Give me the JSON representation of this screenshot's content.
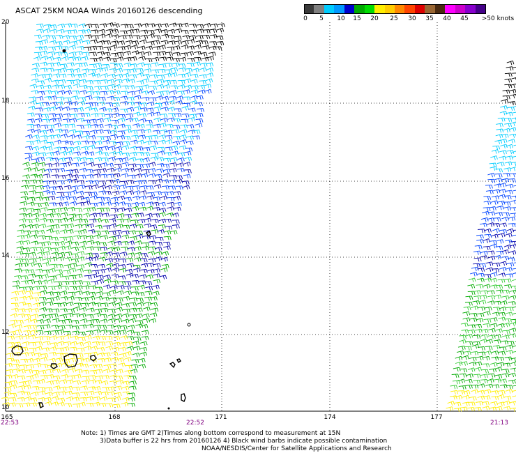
{
  "title": "ASCAT 25KM NOAA Winds 20160126 descending",
  "legend": {
    "colors": [
      "#3a3a3a",
      "#808080",
      "#00ccff",
      "#0099ff",
      "#0000cc",
      "#00aa00",
      "#00dd00",
      "#ffee00",
      "#ffcc00",
      "#ff8800",
      "#ff4400",
      "#dd0000",
      "#996633",
      "#4a2a10",
      "#ff00ff",
      "#cc00cc",
      "#8800cc",
      "#440088"
    ],
    "labels": [
      "0",
      "5",
      "10",
      "15",
      "20",
      "25",
      "30",
      "35",
      "40",
      "45",
      ">50 knots"
    ]
  },
  "axes": {
    "lat_labels": [
      "20",
      "18",
      "16",
      "14",
      "12",
      "10"
    ],
    "lon_labels": [
      "165",
      "168",
      "171",
      "174",
      "177"
    ],
    "time_labels": [
      "22:53",
      "22:52",
      "21:13"
    ]
  },
  "notes": [
    "Note: 1) Times are GMT 2)Times along bottom correspond to measurement at 15N",
    "3)Data buffer is 22 hrs from 20160126 4) Black wind barbs indicate possible contamination",
    "NOAA/NESDIS/Center for Satellite Applications and Research"
  ],
  "speed_colors": {
    "black": "#000000",
    "cyan": "#00ccff",
    "blue": "#0044ff",
    "navy": "#0000aa",
    "green": "#00aa00",
    "lightgreen": "#33cc33",
    "yellow": "#ffee00"
  }
}
